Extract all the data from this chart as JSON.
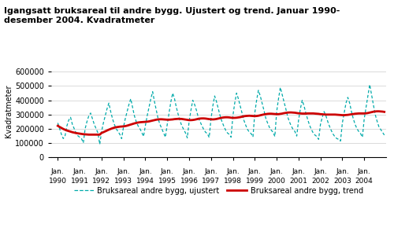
{
  "title_line1": "Igangsatt bruksareal til andre bygg. Ujustert og trend. Januar 1990-",
  "title_line2": "desember 2004. Kvadratmeter",
  "ylabel": "Kvadratmeter",
  "ylim": [
    0,
    650000
  ],
  "yticks": [
    0,
    100000,
    200000,
    300000,
    400000,
    500000,
    600000
  ],
  "ytick_labels": [
    "0",
    "100000",
    "200000",
    "300000",
    "400000",
    "500000",
    "600000"
  ],
  "years": [
    1990,
    1991,
    1992,
    1993,
    1994,
    1995,
    1996,
    1997,
    1998,
    1999,
    2000,
    2001,
    2002,
    2003,
    2004
  ],
  "ujustert_color": "#00AAAA",
  "trend_color": "#CC0000",
  "bg_color": "#ffffff",
  "legend_ujustert": "Bruksareal andre bygg, ujustert",
  "legend_trend": "Bruksareal andre bygg, trend",
  "ujustert": [
    240000,
    200000,
    160000,
    130000,
    150000,
    220000,
    260000,
    280000,
    230000,
    200000,
    170000,
    150000,
    140000,
    130000,
    100000,
    200000,
    250000,
    290000,
    310000,
    270000,
    230000,
    200000,
    170000,
    90000,
    180000,
    240000,
    290000,
    340000,
    380000,
    320000,
    270000,
    230000,
    200000,
    180000,
    160000,
    130000,
    210000,
    270000,
    320000,
    370000,
    410000,
    350000,
    290000,
    250000,
    220000,
    200000,
    175000,
    145000,
    220000,
    290000,
    350000,
    410000,
    460000,
    390000,
    330000,
    270000,
    230000,
    200000,
    170000,
    140000,
    230000,
    310000,
    390000,
    450000,
    410000,
    350000,
    300000,
    255000,
    220000,
    195000,
    170000,
    135000,
    250000,
    330000,
    400000,
    370000,
    330000,
    280000,
    250000,
    220000,
    195000,
    175000,
    165000,
    138000,
    270000,
    360000,
    430000,
    390000,
    340000,
    290000,
    250000,
    218000,
    190000,
    170000,
    160000,
    140000,
    290000,
    380000,
    450000,
    410000,
    360000,
    310000,
    260000,
    225000,
    195000,
    175000,
    165000,
    142000,
    310000,
    400000,
    470000,
    430000,
    380000,
    330000,
    275000,
    240000,
    210000,
    190000,
    175000,
    145000,
    320000,
    410000,
    490000,
    440000,
    390000,
    340000,
    285000,
    248000,
    218000,
    195000,
    180000,
    148000,
    260000,
    340000,
    400000,
    360000,
    310000,
    265000,
    225000,
    195000,
    170000,
    155000,
    145000,
    125000,
    230000,
    280000,
    320000,
    290000,
    250000,
    215000,
    185000,
    160000,
    142000,
    130000,
    125000,
    113000,
    240000,
    310000,
    380000,
    420000,
    380000,
    320000,
    270000,
    230000,
    200000,
    180000,
    165000,
    140000,
    270000,
    350000,
    430000,
    510000,
    440000,
    370000,
    300000,
    255000,
    215000,
    195000,
    175000,
    155000
  ],
  "trend": [
    220000,
    212000,
    205000,
    198000,
    192000,
    187000,
    183000,
    179000,
    175000,
    172000,
    169000,
    167000,
    165000,
    163000,
    161000,
    160000,
    159000,
    158000,
    158000,
    158000,
    158000,
    158000,
    158000,
    158000,
    170000,
    175000,
    181000,
    187000,
    193000,
    198000,
    203000,
    207000,
    210000,
    212000,
    214000,
    215000,
    216000,
    218000,
    221000,
    225000,
    229000,
    233000,
    237000,
    240000,
    243000,
    245000,
    246000,
    247000,
    248000,
    249000,
    251000,
    254000,
    257000,
    260000,
    263000,
    265000,
    266000,
    266000,
    265000,
    264000,
    263000,
    263000,
    264000,
    265000,
    267000,
    268000,
    269000,
    269000,
    268000,
    266000,
    264000,
    262000,
    260000,
    260000,
    261000,
    263000,
    266000,
    269000,
    271000,
    272000,
    272000,
    271000,
    269000,
    267000,
    266000,
    265000,
    266000,
    268000,
    271000,
    274000,
    277000,
    279000,
    280000,
    280000,
    279000,
    277000,
    276000,
    276000,
    277000,
    279000,
    281000,
    284000,
    287000,
    289000,
    290000,
    291000,
    290000,
    289000,
    288000,
    289000,
    291000,
    294000,
    297000,
    300000,
    302000,
    304000,
    305000,
    305000,
    304000,
    303000,
    302000,
    302000,
    304000,
    306000,
    309000,
    311000,
    313000,
    314000,
    314000,
    313000,
    312000,
    310000,
    308000,
    307000,
    306000,
    306000,
    306000,
    307000,
    307000,
    307000,
    307000,
    306000,
    305000,
    304000,
    302000,
    301000,
    300000,
    299000,
    299000,
    299000,
    299000,
    299000,
    299000,
    298000,
    297000,
    296000,
    295000,
    295000,
    296000,
    297000,
    299000,
    301000,
    303000,
    305000,
    306000,
    307000,
    307000,
    307000,
    307000,
    308000,
    310000,
    313000,
    316000,
    319000,
    321000,
    322000,
    322000,
    321000,
    320000,
    318000
  ]
}
